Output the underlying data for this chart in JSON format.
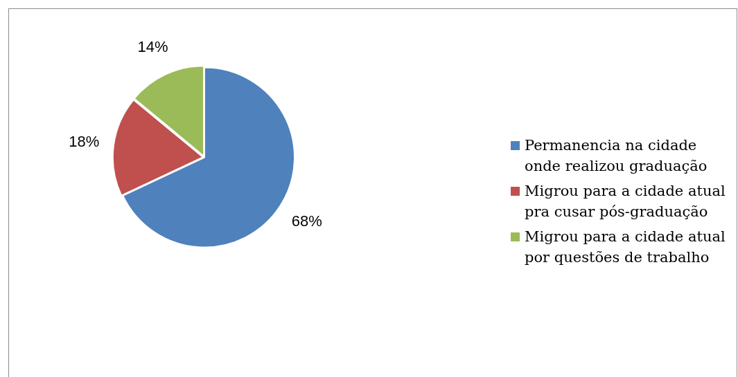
{
  "chart_data": {
    "type": "pie",
    "categories": [
      "Permanencia na cidade onde realizou graduação",
      "Migrou para a cidade atual pra cusar pós-graduação",
      "Migrou para a cidade atual por questões de trabalho"
    ],
    "values": [
      68,
      18,
      14
    ],
    "colors": [
      "#4f81bd",
      "#c0504d",
      "#9bbb59"
    ],
    "value_labels": [
      "68%",
      "18%",
      "14%"
    ],
    "legend": "right"
  }
}
